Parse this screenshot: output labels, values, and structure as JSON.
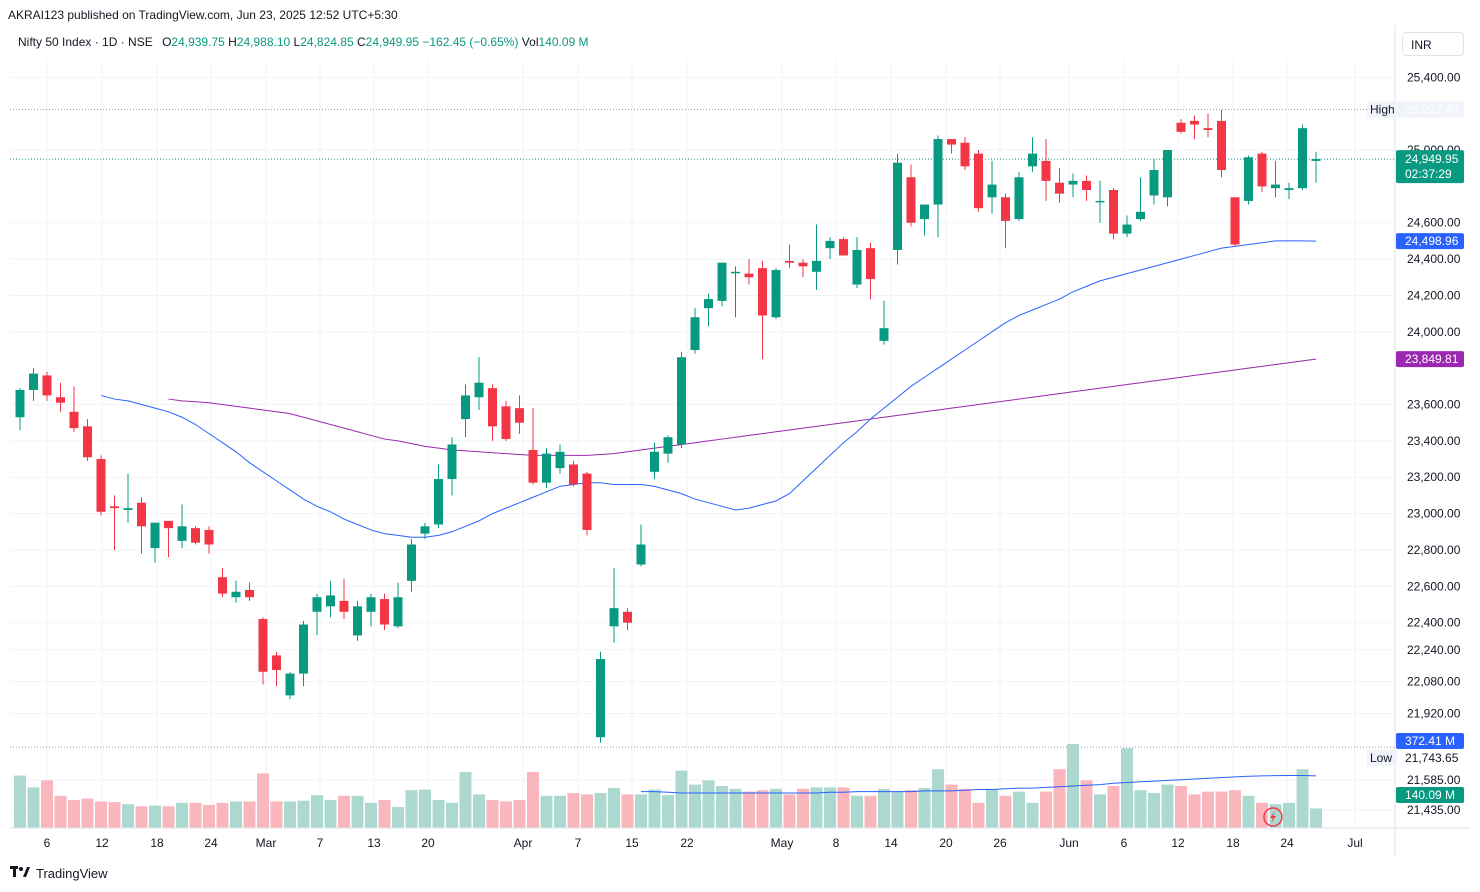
{
  "header": {
    "published": "AKRAI123 published on TradingView.com, Jun 23, 2025 12:52 UTC+5:30"
  },
  "legend": {
    "symbol": "Nifty 50 Index · 1D · NSE",
    "o_label": "O",
    "o": "24,939.75",
    "h_label": "H",
    "h": "24,988.10",
    "l_label": "L",
    "l": "24,824.85",
    "c_label": "C",
    "c": "24,949.95",
    "change": "−162.45 (−0.65%)",
    "vol_label": "Vol",
    "vol": "140.09 M"
  },
  "currency": "INR",
  "footer": {
    "brand": "TradingView"
  },
  "colors": {
    "up": "#089981",
    "down": "#f23645",
    "up_vol": "#acd9cf",
    "down_vol": "#f9b7bd",
    "ma_fast": "#2962ff",
    "ma_slow": "#9c27b0",
    "tag_blue": "#2962ff",
    "tag_purple": "#9c27b0",
    "tag_green": "#089981"
  },
  "chart_data": {
    "type": "candlestick",
    "title": "Nifty 50 Index · 1D · NSE",
    "y_ticks": [
      "25,400.00",
      "25,000.00",
      "24,600.00",
      "24,400.00",
      "24,200.00",
      "24,000.00",
      "23,600.00",
      "23,400.00",
      "23,200.00",
      "23,000.00",
      "22,800.00",
      "22,600.00",
      "22,400.00",
      "22,240.00",
      "22,080.00",
      "21,920.00",
      "21,585.00",
      "21,435.00"
    ],
    "x_ticks": [
      "6",
      "12",
      "18",
      "24",
      "Mar",
      "7",
      "13",
      "20",
      "Apr",
      "7",
      "15",
      "22",
      "May",
      "8",
      "14",
      "20",
      "26",
      "Jun",
      "6",
      "12",
      "18",
      "24",
      "Jul"
    ],
    "price_labels": {
      "high_label": "High",
      "high": "25,222.40",
      "low_label": "Low",
      "low": "21,743.65",
      "last": "24,949.95",
      "countdown": "02:37:29",
      "ma_fast": "24,498.96",
      "ma_slow": "23,849.81",
      "vol_ma": "372.41 M",
      "vol": "140.09 M"
    },
    "candles": [
      {
        "o": 23530,
        "h": 23690,
        "l": 23460,
        "c": 23680
      },
      {
        "o": 23680,
        "h": 23800,
        "l": 23620,
        "c": 23770
      },
      {
        "o": 23760,
        "h": 23780,
        "l": 23620,
        "c": 23650
      },
      {
        "o": 23640,
        "h": 23720,
        "l": 23560,
        "c": 23610
      },
      {
        "o": 23560,
        "h": 23700,
        "l": 23450,
        "c": 23470
      },
      {
        "o": 23480,
        "h": 23520,
        "l": 23290,
        "c": 23310
      },
      {
        "o": 23300,
        "h": 23320,
        "l": 22990,
        "c": 23010
      },
      {
        "o": 23040,
        "h": 23100,
        "l": 22800,
        "c": 23030
      },
      {
        "o": 23020,
        "h": 23220,
        "l": 22950,
        "c": 23030
      },
      {
        "o": 23060,
        "h": 23090,
        "l": 22780,
        "c": 22930
      },
      {
        "o": 22810,
        "h": 22950,
        "l": 22730,
        "c": 22950
      },
      {
        "o": 22960,
        "h": 22960,
        "l": 22760,
        "c": 22920
      },
      {
        "o": 22850,
        "h": 23050,
        "l": 22810,
        "c": 22930
      },
      {
        "o": 22920,
        "h": 22930,
        "l": 22830,
        "c": 22840
      },
      {
        "o": 22910,
        "h": 22930,
        "l": 22780,
        "c": 22830
      },
      {
        "o": 22650,
        "h": 22700,
        "l": 22540,
        "c": 22560
      },
      {
        "o": 22540,
        "h": 22630,
        "l": 22510,
        "c": 22570
      },
      {
        "o": 22580,
        "h": 22620,
        "l": 22520,
        "c": 22540
      },
      {
        "o": 22420,
        "h": 22430,
        "l": 22060,
        "c": 22130
      },
      {
        "o": 22220,
        "h": 22240,
        "l": 22050,
        "c": 22140
      },
      {
        "o": 22000,
        "h": 22130,
        "l": 21980,
        "c": 22120
      },
      {
        "o": 22120,
        "h": 22410,
        "l": 22050,
        "c": 22390
      },
      {
        "o": 22460,
        "h": 22560,
        "l": 22330,
        "c": 22540
      },
      {
        "o": 22490,
        "h": 22630,
        "l": 22430,
        "c": 22550
      },
      {
        "o": 22520,
        "h": 22640,
        "l": 22420,
        "c": 22460
      },
      {
        "o": 22330,
        "h": 22520,
        "l": 22300,
        "c": 22490
      },
      {
        "o": 22460,
        "h": 22560,
        "l": 22380,
        "c": 22540
      },
      {
        "o": 22530,
        "h": 22560,
        "l": 22360,
        "c": 22390
      },
      {
        "o": 22380,
        "h": 22620,
        "l": 22370,
        "c": 22540
      },
      {
        "o": 22630,
        "h": 22860,
        "l": 22570,
        "c": 22830
      },
      {
        "o": 22890,
        "h": 22950,
        "l": 22860,
        "c": 22930
      },
      {
        "o": 22940,
        "h": 23270,
        "l": 22920,
        "c": 23190
      },
      {
        "o": 23190,
        "h": 23420,
        "l": 23100,
        "c": 23380
      },
      {
        "o": 23520,
        "h": 23710,
        "l": 23420,
        "c": 23650
      },
      {
        "o": 23640,
        "h": 23860,
        "l": 23570,
        "c": 23720
      },
      {
        "o": 23690,
        "h": 23710,
        "l": 23400,
        "c": 23480
      },
      {
        "o": 23590,
        "h": 23620,
        "l": 23400,
        "c": 23410
      },
      {
        "o": 23580,
        "h": 23650,
        "l": 23440,
        "c": 23500
      },
      {
        "o": 23350,
        "h": 23580,
        "l": 23160,
        "c": 23170
      },
      {
        "o": 23170,
        "h": 23360,
        "l": 23140,
        "c": 23330
      },
      {
        "o": 23250,
        "h": 23380,
        "l": 23220,
        "c": 23340
      },
      {
        "o": 23270,
        "h": 23290,
        "l": 23150,
        "c": 23160
      },
      {
        "o": 23220,
        "h": 23230,
        "l": 22880,
        "c": 22910
      },
      {
        "o": 21770,
        "h": 22240,
        "l": 21740,
        "c": 22200
      },
      {
        "o": 22380,
        "h": 22700,
        "l": 22290,
        "c": 22480
      },
      {
        "o": 22460,
        "h": 22480,
        "l": 22360,
        "c": 22400
      },
      {
        "o": 22720,
        "h": 22940,
        "l": 22710,
        "c": 22830
      },
      {
        "o": 23230,
        "h": 23390,
        "l": 23190,
        "c": 23340
      },
      {
        "o": 23330,
        "h": 23430,
        "l": 23280,
        "c": 23420
      },
      {
        "o": 23380,
        "h": 23890,
        "l": 23360,
        "c": 23860
      },
      {
        "o": 23900,
        "h": 24130,
        "l": 23880,
        "c": 24080
      },
      {
        "o": 24130,
        "h": 24210,
        "l": 24030,
        "c": 24180
      },
      {
        "o": 24170,
        "h": 24380,
        "l": 24140,
        "c": 24380
      },
      {
        "o": 24330,
        "h": 24360,
        "l": 24080,
        "c": 24330
      },
      {
        "o": 24320,
        "h": 24400,
        "l": 24260,
        "c": 24300
      },
      {
        "o": 24350,
        "h": 24390,
        "l": 23850,
        "c": 24090
      },
      {
        "o": 24080,
        "h": 24350,
        "l": 24070,
        "c": 24340
      },
      {
        "o": 24390,
        "h": 24480,
        "l": 24350,
        "c": 24380
      },
      {
        "o": 24380,
        "h": 24400,
        "l": 24300,
        "c": 24360
      },
      {
        "o": 24330,
        "h": 24590,
        "l": 24230,
        "c": 24390
      },
      {
        "o": 24460,
        "h": 24520,
        "l": 24400,
        "c": 24500
      },
      {
        "o": 24510,
        "h": 24520,
        "l": 24420,
        "c": 24420
      },
      {
        "o": 24260,
        "h": 24520,
        "l": 24240,
        "c": 24450
      },
      {
        "o": 24460,
        "h": 24490,
        "l": 24180,
        "c": 24290
      },
      {
        "o": 23950,
        "h": 24170,
        "l": 23930,
        "c": 24020
      },
      {
        "o": 24450,
        "h": 24980,
        "l": 24370,
        "c": 24930
      },
      {
        "o": 24850,
        "h": 24920,
        "l": 24580,
        "c": 24600
      },
      {
        "o": 24620,
        "h": 24700,
        "l": 24530,
        "c": 24700
      },
      {
        "o": 24700,
        "h": 25080,
        "l": 24520,
        "c": 25060
      },
      {
        "o": 25060,
        "h": 25060,
        "l": 24980,
        "c": 25030
      },
      {
        "o": 25040,
        "h": 25070,
        "l": 24890,
        "c": 24910
      },
      {
        "o": 24980,
        "h": 25000,
        "l": 24660,
        "c": 24680
      },
      {
        "o": 24740,
        "h": 24940,
        "l": 24650,
        "c": 24810
      },
      {
        "o": 24740,
        "h": 24760,
        "l": 24460,
        "c": 24610
      },
      {
        "o": 24620,
        "h": 24880,
        "l": 24610,
        "c": 24850
      },
      {
        "o": 24910,
        "h": 25070,
        "l": 24880,
        "c": 24980
      },
      {
        "o": 24940,
        "h": 25060,
        "l": 24720,
        "c": 24830
      },
      {
        "o": 24820,
        "h": 24900,
        "l": 24710,
        "c": 24760
      },
      {
        "o": 24810,
        "h": 24870,
        "l": 24740,
        "c": 24830
      },
      {
        "o": 24830,
        "h": 24860,
        "l": 24720,
        "c": 24780
      },
      {
        "o": 24720,
        "h": 24830,
        "l": 24600,
        "c": 24720
      },
      {
        "o": 24780,
        "h": 24790,
        "l": 24510,
        "c": 24540
      },
      {
        "o": 24540,
        "h": 24640,
        "l": 24520,
        "c": 24590
      },
      {
        "o": 24620,
        "h": 24850,
        "l": 24610,
        "c": 24660
      },
      {
        "o": 24750,
        "h": 24950,
        "l": 24700,
        "c": 24890
      },
      {
        "o": 24740,
        "h": 25000,
        "l": 24690,
        "c": 25000
      },
      {
        "o": 25150,
        "h": 25170,
        "l": 25090,
        "c": 25100
      },
      {
        "o": 25160,
        "h": 25190,
        "l": 25060,
        "c": 25140
      },
      {
        "o": 25120,
        "h": 25200,
        "l": 25070,
        "c": 25110
      },
      {
        "o": 25160,
        "h": 25220,
        "l": 24850,
        "c": 24890
      },
      {
        "o": 24740,
        "h": 24740,
        "l": 24470,
        "c": 24480
      },
      {
        "o": 24720,
        "h": 24970,
        "l": 24700,
        "c": 24960
      },
      {
        "o": 24980,
        "h": 24990,
        "l": 24770,
        "c": 24800
      },
      {
        "o": 24790,
        "h": 24940,
        "l": 24740,
        "c": 24810
      },
      {
        "o": 24780,
        "h": 24820,
        "l": 24730,
        "c": 24790
      },
      {
        "o": 24790,
        "h": 25140,
        "l": 24780,
        "c": 25120
      },
      {
        "o": 24940,
        "h": 24990,
        "l": 24820,
        "c": 24950
      }
    ],
    "volume": [
      3.75,
      2.9,
      3.4,
      2.3,
      2.0,
      2.1,
      1.9,
      1.85,
      1.7,
      1.55,
      1.6,
      1.55,
      1.8,
      1.8,
      1.65,
      1.8,
      1.9,
      1.9,
      3.9,
      1.9,
      1.9,
      1.95,
      2.35,
      2.0,
      2.3,
      2.3,
      1.8,
      2.0,
      1.5,
      2.7,
      2.75,
      2.0,
      1.8,
      4.0,
      2.4,
      2.0,
      1.9,
      2.0,
      4.0,
      2.3,
      2.3,
      2.5,
      2.4,
      2.5,
      2.85,
      2.4,
      2.4,
      2.75,
      2.35,
      4.1,
      3.1,
      3.4,
      3.0,
      2.8,
      2.6,
      2.7,
      2.8,
      2.4,
      2.8,
      2.9,
      2.9,
      2.9,
      2.3,
      2.3,
      2.8,
      2.6,
      2.7,
      2.85,
      4.2,
      3.1,
      2.8,
      1.8,
      2.75,
      2.3,
      2.6,
      1.8,
      2.6,
      4.2,
      6.0,
      3.4,
      2.4,
      3.0,
      5.7,
      2.7,
      2.5,
      3.1,
      3.0,
      2.4,
      2.6,
      2.6,
      2.7,
      2.3,
      1.8,
      1.7,
      1.8,
      4.2,
      1.4
    ],
    "ma_fast": [
      23650,
      23630,
      23620,
      23600,
      23580,
      23560,
      23530,
      23490,
      23440,
      23390,
      23340,
      23280,
      23230,
      23180,
      23130,
      23080,
      23040,
      23010,
      22970,
      22940,
      22910,
      22890,
      22880,
      22870,
      22870,
      22880,
      22900,
      22930,
      22960,
      23000,
      23030,
      23060,
      23090,
      23120,
      23150,
      23160,
      23170,
      23170,
      23160,
      23160,
      23160,
      23150,
      23130,
      23110,
      23080,
      23060,
      23040,
      23020,
      23030,
      23050,
      23070,
      23110,
      23180,
      23250,
      23320,
      23390,
      23450,
      23520,
      23580,
      23640,
      23700,
      23750,
      23800,
      23850,
      23900,
      23950,
      24000,
      24050,
      24090,
      24120,
      24150,
      24180,
      24220,
      24250,
      24280,
      24300,
      24320,
      24340,
      24360,
      24380,
      24400,
      24420,
      24440,
      24460,
      24470,
      24480,
      24490,
      24500,
      24500,
      24500,
      24499
    ],
    "ma_slow": [
      23630,
      23620,
      23615,
      23610,
      23600,
      23590,
      23580,
      23570,
      23560,
      23550,
      23530,
      23510,
      23490,
      23470,
      23450,
      23430,
      23410,
      23400,
      23385,
      23370,
      23360,
      23350,
      23345,
      23340,
      23335,
      23330,
      23325,
      23320,
      23320,
      23320,
      23320,
      23320,
      23325,
      23330,
      23340,
      23350,
      23360,
      23370,
      23380,
      23390,
      23400,
      23410,
      23420,
      23430,
      23440,
      23450,
      23460,
      23470,
      23480,
      23490,
      23500,
      23510,
      23520,
      23530,
      23540,
      23550,
      23560,
      23570,
      23580,
      23590,
      23600,
      23610,
      23620,
      23630,
      23640,
      23650,
      23660,
      23670,
      23680,
      23690,
      23700,
      23710,
      23720,
      23730,
      23740,
      23750,
      23760,
      23770,
      23780,
      23790,
      23800,
      23810,
      23820,
      23830,
      23840,
      23850
    ],
    "vol_ma": [
      2.6,
      2.6,
      2.55,
      2.5,
      2.5,
      2.5,
      2.5,
      2.5,
      2.5,
      2.5,
      2.5,
      2.5,
      2.5,
      2.5,
      2.55,
      2.55,
      2.6,
      2.6,
      2.6,
      2.6,
      2.6,
      2.65,
      2.65,
      2.65,
      2.7,
      2.75,
      2.75,
      2.8,
      2.85,
      2.85,
      2.9,
      2.95,
      3.0,
      3.05,
      3.1,
      3.2,
      3.25,
      3.3,
      3.35,
      3.4,
      3.45,
      3.5,
      3.55,
      3.6,
      3.65,
      3.7,
      3.72,
      3.74,
      3.75,
      3.75,
      3.72
    ]
  }
}
